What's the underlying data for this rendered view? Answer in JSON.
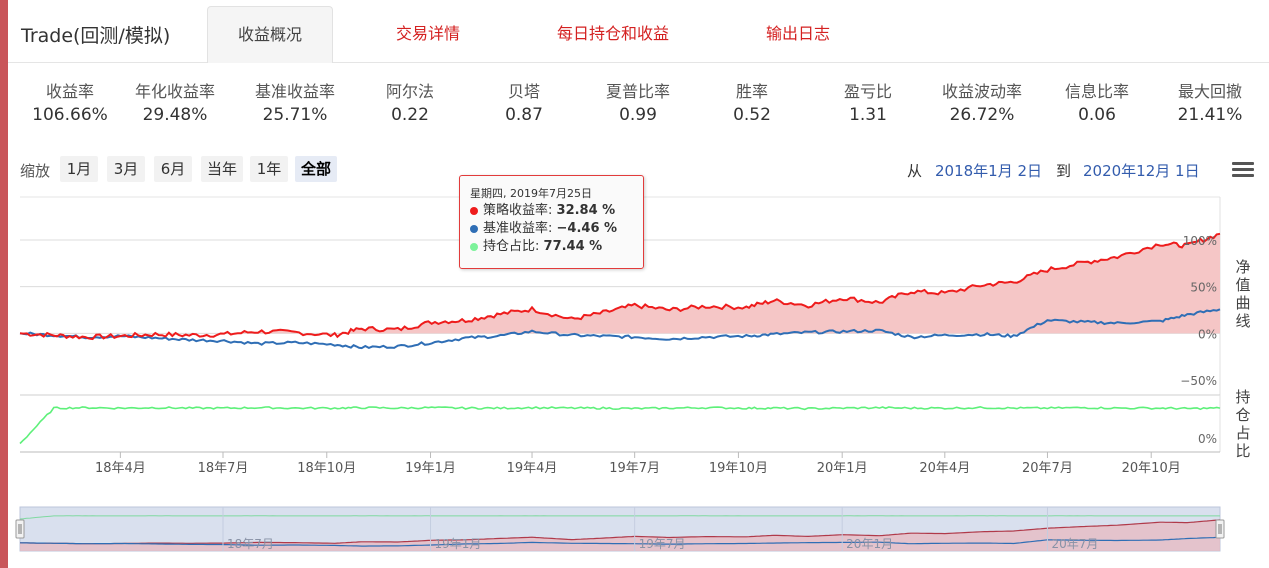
{
  "app": {
    "title": "Trade(回测/模拟)"
  },
  "tabs": [
    {
      "label": "收益概况"
    },
    {
      "label": "交易详情"
    },
    {
      "label": "每日持仓和收益"
    },
    {
      "label": "输出日志"
    }
  ],
  "stats": [
    {
      "label": "收益率",
      "value": "106.66%"
    },
    {
      "label": "年化收益率",
      "value": "29.48%"
    },
    {
      "label": "基准收益率",
      "value": "25.71%"
    },
    {
      "label": "阿尔法",
      "value": "0.22"
    },
    {
      "label": "贝塔",
      "value": "0.87"
    },
    {
      "label": "夏普比率",
      "value": "0.99"
    },
    {
      "label": "胜率",
      "value": "0.52"
    },
    {
      "label": "盈亏比",
      "value": "1.31"
    },
    {
      "label": "收益波动率",
      "value": "26.72%"
    },
    {
      "label": "信息比率",
      "value": "0.06"
    },
    {
      "label": "最大回撤",
      "value": "21.41%"
    }
  ],
  "zoom": {
    "label": "缩放",
    "buttons": [
      "1月",
      "3月",
      "6月",
      "当年",
      "1年",
      "全部"
    ],
    "selected": "全部"
  },
  "range": {
    "from_label": "从",
    "from": "2018年1月 2日",
    "to_label": "到",
    "to": "2020年12月 1日"
  },
  "tooltip": {
    "date": "星期四, 2019年7月25日",
    "rows": [
      {
        "label": "策略收益率:",
        "value": "32.84 %",
        "color": "#ee1c1c"
      },
      {
        "label": "基准收益率:",
        "value": "−4.46 %",
        "color": "#2f6eb5"
      },
      {
        "label": "持仓占比:",
        "value": "77.44 %",
        "color": "#7cf29a"
      }
    ]
  },
  "colors": {
    "strategy": "#ee1c1c",
    "benchmark": "#2f6eb5",
    "position": "#5ef07a",
    "fill": "#f5c6c6",
    "accent_link": "#d42121"
  },
  "chart_data": {
    "type": "line",
    "x": [
      "2018-01-02",
      "2018-02-01",
      "2018-03-01",
      "2018-04-02",
      "2018-05-02",
      "2018-06-01",
      "2018-07-02",
      "2018-08-01",
      "2018-09-03",
      "2018-10-08",
      "2018-11-01",
      "2018-12-03",
      "2019-01-02",
      "2019-02-01",
      "2019-03-01",
      "2019-04-01",
      "2019-05-06",
      "2019-06-03",
      "2019-07-01",
      "2019-08-01",
      "2019-09-02",
      "2019-10-08",
      "2019-11-01",
      "2019-12-02",
      "2020-01-02",
      "2020-02-03",
      "2020-03-02",
      "2020-04-01",
      "2020-05-06",
      "2020-06-01",
      "2020-07-01",
      "2020-08-03",
      "2020-09-01",
      "2020-10-09",
      "2020-11-02",
      "2020-12-01"
    ],
    "series": [
      {
        "name": "净值曲线 策略收益率",
        "values": [
          0,
          -2,
          -4,
          -3,
          -1,
          -2,
          -1,
          2,
          1,
          -2,
          5,
          4,
          12,
          14,
          20,
          26,
          15,
          22,
          30,
          25,
          29,
          28,
          35,
          30,
          38,
          33,
          45,
          43,
          52,
          55,
          68,
          76,
          82,
          96,
          94,
          106.66
        ]
      },
      {
        "name": "基准收益率",
        "values": [
          0,
          -2,
          -4,
          -3,
          -5,
          -7,
          -8,
          -11,
          -10,
          -12,
          -15,
          -14,
          -10,
          -5,
          -3,
          2,
          -2,
          -3,
          -4,
          -6,
          -4,
          -3,
          -1,
          1,
          2,
          3,
          -4,
          -2,
          -1,
          -3,
          14,
          12,
          11,
          13,
          20,
          25.71
        ]
      },
      {
        "name": "持仓占比",
        "values": [
          1,
          78,
          79,
          78,
          79,
          78,
          78,
          79,
          78,
          78,
          79,
          78,
          79,
          78,
          78,
          79,
          78,
          78,
          77,
          78,
          79,
          78,
          78,
          77,
          78,
          79,
          78,
          78,
          79,
          78,
          78,
          79,
          78,
          78,
          77,
          78
        ]
      }
    ],
    "y_axis_1": {
      "title": "净值曲线",
      "ticks": [
        "100%",
        "50%",
        "0%",
        "−50%"
      ],
      "range": [
        -50,
        100
      ]
    },
    "y_axis_2": {
      "title": "持仓占比",
      "ticks": [
        "0%"
      ],
      "range": [
        0,
        100
      ]
    },
    "x_ticks": [
      "18年4月",
      "18年7月",
      "18年10月",
      "19年1月",
      "19年4月",
      "19年7月",
      "19年10月",
      "20年1月",
      "20年4月",
      "20年7月",
      "20年10月"
    ],
    "navigator_ticks": [
      "18年7月",
      "19年1月",
      "19年7月",
      "20年1月",
      "20年7月"
    ],
    "grid": true
  }
}
